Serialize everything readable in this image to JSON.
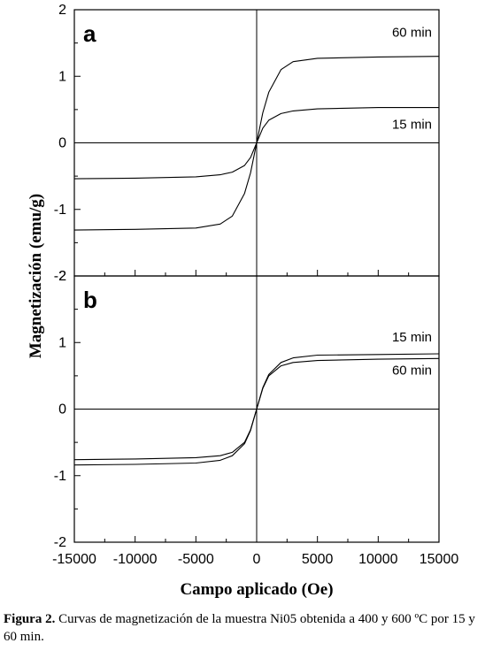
{
  "chart_data": [
    {
      "type": "line",
      "panel_label": "a",
      "xlim": [
        -15000,
        15000
      ],
      "ylim": [
        -2,
        2
      ],
      "x_ticks": [
        "-15000",
        "-10000",
        "-5000",
        "0",
        "5000",
        "10000",
        "15000"
      ],
      "y_ticks": [
        "2",
        "1",
        "0",
        "-1",
        "-2"
      ],
      "grid": false,
      "series": [
        {
          "name": "60 min",
          "saturation": 1.3,
          "points": [
            [
              -15000,
              -1.31
            ],
            [
              -10000,
              -1.3
            ],
            [
              -5000,
              -1.28
            ],
            [
              -3000,
              -1.22
            ],
            [
              -2000,
              -1.1
            ],
            [
              -1000,
              -0.76
            ],
            [
              -500,
              -0.45
            ],
            [
              0,
              0
            ],
            [
              500,
              0.45
            ],
            [
              1000,
              0.76
            ],
            [
              2000,
              1.1
            ],
            [
              3000,
              1.22
            ],
            [
              5000,
              1.27
            ],
            [
              10000,
              1.29
            ],
            [
              15000,
              1.3
            ]
          ]
        },
        {
          "name": "15 min",
          "saturation": 0.53,
          "points": [
            [
              -15000,
              -0.54
            ],
            [
              -10000,
              -0.53
            ],
            [
              -5000,
              -0.51
            ],
            [
              -3000,
              -0.48
            ],
            [
              -2000,
              -0.44
            ],
            [
              -1000,
              -0.34
            ],
            [
              -500,
              -0.22
            ],
            [
              0,
              0
            ],
            [
              500,
              0.22
            ],
            [
              1000,
              0.34
            ],
            [
              2000,
              0.44
            ],
            [
              3000,
              0.48
            ],
            [
              5000,
              0.51
            ],
            [
              10000,
              0.53
            ],
            [
              15000,
              0.53
            ]
          ]
        }
      ]
    },
    {
      "type": "line",
      "panel_label": "b",
      "xlim": [
        -15000,
        15000
      ],
      "ylim": [
        -2,
        2
      ],
      "x_ticks": [
        "-15000",
        "-10000",
        "-5000",
        "0",
        "5000",
        "10000",
        "15000"
      ],
      "y_ticks": [
        "2",
        "1",
        "0",
        "-1",
        "-2"
      ],
      "grid": false,
      "series": [
        {
          "name": "15 min",
          "saturation": 0.83,
          "points": [
            [
              -15000,
              -0.84
            ],
            [
              -10000,
              -0.83
            ],
            [
              -5000,
              -0.81
            ],
            [
              -3000,
              -0.77
            ],
            [
              -2000,
              -0.7
            ],
            [
              -1000,
              -0.52
            ],
            [
              -500,
              -0.32
            ],
            [
              0,
              0
            ],
            [
              500,
              0.32
            ],
            [
              1000,
              0.52
            ],
            [
              2000,
              0.7
            ],
            [
              3000,
              0.77
            ],
            [
              5000,
              0.81
            ],
            [
              10000,
              0.82
            ],
            [
              15000,
              0.83
            ]
          ]
        },
        {
          "name": "60 min",
          "saturation": 0.76,
          "points": [
            [
              -15000,
              -0.76
            ],
            [
              -10000,
              -0.75
            ],
            [
              -5000,
              -0.73
            ],
            [
              -3000,
              -0.7
            ],
            [
              -2000,
              -0.65
            ],
            [
              -1000,
              -0.5
            ],
            [
              -500,
              -0.31
            ],
            [
              0,
              0
            ],
            [
              500,
              0.31
            ],
            [
              1000,
              0.5
            ],
            [
              2000,
              0.65
            ],
            [
              3000,
              0.7
            ],
            [
              5000,
              0.73
            ],
            [
              10000,
              0.75
            ],
            [
              15000,
              0.76
            ]
          ]
        }
      ]
    }
  ],
  "xlabel": "Campo aplicado (Oe)",
  "ylabel": "Magnetización (emu/g)",
  "caption": {
    "label": "Figura 2.",
    "text": " Curvas de magnetización de la muestra Ni05 obtenida a 400 y 600 ºC por 15 y 60 min."
  }
}
